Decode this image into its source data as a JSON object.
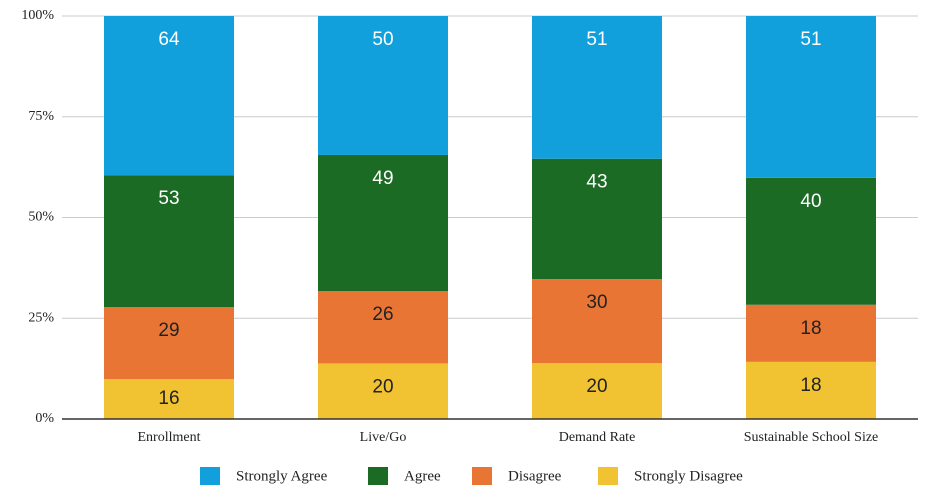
{
  "chart_data": {
    "type": "bar",
    "stacked": "percent",
    "categories": [
      "Enrollment",
      "Live/Go",
      "Demand Rate",
      "Sustainable School Size"
    ],
    "series": [
      {
        "name": "Strongly Agree",
        "color": "#11a0db",
        "values": [
          64,
          50,
          51,
          51
        ]
      },
      {
        "name": "Agree",
        "color": "#1c6b25",
        "values": [
          53,
          49,
          43,
          40
        ]
      },
      {
        "name": "Disagree",
        "color": "#e97534",
        "values": [
          29,
          26,
          30,
          18
        ]
      },
      {
        "name": "Strongly Disagree",
        "color": "#f1c232",
        "values": [
          16,
          20,
          20,
          18
        ]
      }
    ],
    "ylim": [
      0,
      100
    ],
    "yticks": [
      {
        "value": 0,
        "label": "0%"
      },
      {
        "value": 25,
        "label": "25%"
      },
      {
        "value": 50,
        "label": "50%"
      },
      {
        "value": 75,
        "label": "75%"
      },
      {
        "value": 100,
        "label": "100%"
      }
    ],
    "grid": true,
    "legend": "bottom"
  }
}
